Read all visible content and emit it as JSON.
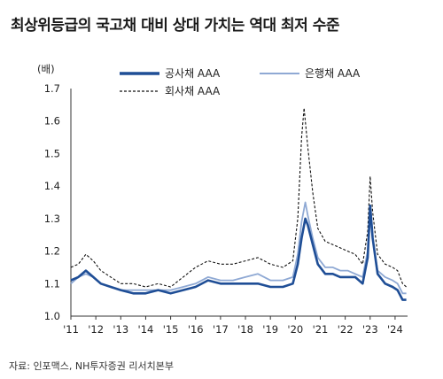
{
  "title": "최상위등급의 국고채 대비 상대 가치는 역대 최저 수준",
  "source": "자료: 인포맥스, NH투자증권 리서치본부",
  "chart_data": {
    "type": "line",
    "ylabel": "(배)",
    "ylim": [
      1.0,
      1.7
    ],
    "y_ticks": [
      "1.0",
      "1.1",
      "1.2",
      "1.3",
      "1.4",
      "1.5",
      "1.6",
      "1.7"
    ],
    "x_ticks": [
      "'11",
      "'12",
      "'13",
      "'14",
      "'15",
      "'16",
      "'17",
      "'18",
      "'19",
      "'20",
      "'21",
      "'22",
      "'23",
      "'24"
    ],
    "xlim": [
      2011.0,
      2024.5
    ],
    "grid": false,
    "legend_position": "top",
    "series": [
      {
        "name": "공사채 AAA",
        "color": "#1f4e96",
        "style": "solid-thick",
        "points": [
          [
            2011.0,
            1.11
          ],
          [
            2011.3,
            1.12
          ],
          [
            2011.6,
            1.14
          ],
          [
            2011.9,
            1.12
          ],
          [
            2012.2,
            1.1
          ],
          [
            2012.6,
            1.09
          ],
          [
            2013.0,
            1.08
          ],
          [
            2013.5,
            1.07
          ],
          [
            2014.0,
            1.07
          ],
          [
            2014.5,
            1.08
          ],
          [
            2015.0,
            1.07
          ],
          [
            2015.5,
            1.08
          ],
          [
            2016.0,
            1.09
          ],
          [
            2016.5,
            1.11
          ],
          [
            2017.0,
            1.1
          ],
          [
            2017.5,
            1.1
          ],
          [
            2018.0,
            1.1
          ],
          [
            2018.5,
            1.1
          ],
          [
            2019.0,
            1.09
          ],
          [
            2019.5,
            1.09
          ],
          [
            2019.9,
            1.1
          ],
          [
            2020.1,
            1.16
          ],
          [
            2020.25,
            1.24
          ],
          [
            2020.4,
            1.3
          ],
          [
            2020.5,
            1.28
          ],
          [
            2020.7,
            1.22
          ],
          [
            2020.9,
            1.16
          ],
          [
            2021.2,
            1.13
          ],
          [
            2021.5,
            1.13
          ],
          [
            2021.8,
            1.12
          ],
          [
            2022.1,
            1.12
          ],
          [
            2022.4,
            1.12
          ],
          [
            2022.7,
            1.1
          ],
          [
            2022.9,
            1.18
          ],
          [
            2023.0,
            1.34
          ],
          [
            2023.1,
            1.24
          ],
          [
            2023.3,
            1.13
          ],
          [
            2023.6,
            1.1
          ],
          [
            2023.9,
            1.09
          ],
          [
            2024.1,
            1.08
          ],
          [
            2024.3,
            1.05
          ],
          [
            2024.45,
            1.05
          ]
        ]
      },
      {
        "name": "은행채 AAA",
        "color": "#8fa9d4",
        "style": "solid",
        "points": [
          [
            2011.0,
            1.1
          ],
          [
            2011.3,
            1.12
          ],
          [
            2011.6,
            1.13
          ],
          [
            2011.9,
            1.12
          ],
          [
            2012.2,
            1.1
          ],
          [
            2012.6,
            1.09
          ],
          [
            2013.0,
            1.08
          ],
          [
            2013.5,
            1.08
          ],
          [
            2014.0,
            1.08
          ],
          [
            2014.5,
            1.08
          ],
          [
            2015.0,
            1.08
          ],
          [
            2015.5,
            1.09
          ],
          [
            2016.0,
            1.1
          ],
          [
            2016.5,
            1.12
          ],
          [
            2017.0,
            1.11
          ],
          [
            2017.5,
            1.11
          ],
          [
            2018.0,
            1.12
          ],
          [
            2018.5,
            1.13
          ],
          [
            2019.0,
            1.11
          ],
          [
            2019.5,
            1.11
          ],
          [
            2019.9,
            1.12
          ],
          [
            2020.1,
            1.19
          ],
          [
            2020.25,
            1.29
          ],
          [
            2020.4,
            1.35
          ],
          [
            2020.5,
            1.31
          ],
          [
            2020.7,
            1.24
          ],
          [
            2020.9,
            1.18
          ],
          [
            2021.2,
            1.15
          ],
          [
            2021.5,
            1.15
          ],
          [
            2021.8,
            1.14
          ],
          [
            2022.1,
            1.14
          ],
          [
            2022.4,
            1.13
          ],
          [
            2022.7,
            1.12
          ],
          [
            2022.9,
            1.2
          ],
          [
            2023.0,
            1.3
          ],
          [
            2023.1,
            1.24
          ],
          [
            2023.3,
            1.14
          ],
          [
            2023.6,
            1.12
          ],
          [
            2023.9,
            1.11
          ],
          [
            2024.1,
            1.1
          ],
          [
            2024.3,
            1.07
          ],
          [
            2024.45,
            1.07
          ]
        ]
      },
      {
        "name": "회사채 AAA",
        "color": "#111111",
        "style": "dashed",
        "points": [
          [
            2011.0,
            1.15
          ],
          [
            2011.3,
            1.16
          ],
          [
            2011.6,
            1.19
          ],
          [
            2011.9,
            1.17
          ],
          [
            2012.2,
            1.14
          ],
          [
            2012.6,
            1.12
          ],
          [
            2013.0,
            1.1
          ],
          [
            2013.5,
            1.1
          ],
          [
            2014.0,
            1.09
          ],
          [
            2014.5,
            1.1
          ],
          [
            2015.0,
            1.09
          ],
          [
            2015.5,
            1.12
          ],
          [
            2016.0,
            1.15
          ],
          [
            2016.5,
            1.17
          ],
          [
            2017.0,
            1.16
          ],
          [
            2017.5,
            1.16
          ],
          [
            2018.0,
            1.17
          ],
          [
            2018.5,
            1.18
          ],
          [
            2019.0,
            1.16
          ],
          [
            2019.5,
            1.15
          ],
          [
            2019.9,
            1.17
          ],
          [
            2020.1,
            1.3
          ],
          [
            2020.25,
            1.55
          ],
          [
            2020.35,
            1.64
          ],
          [
            2020.5,
            1.52
          ],
          [
            2020.7,
            1.38
          ],
          [
            2020.9,
            1.27
          ],
          [
            2021.2,
            1.23
          ],
          [
            2021.5,
            1.22
          ],
          [
            2021.8,
            1.21
          ],
          [
            2022.1,
            1.2
          ],
          [
            2022.4,
            1.19
          ],
          [
            2022.7,
            1.16
          ],
          [
            2022.9,
            1.26
          ],
          [
            2023.0,
            1.43
          ],
          [
            2023.1,
            1.32
          ],
          [
            2023.3,
            1.19
          ],
          [
            2023.6,
            1.16
          ],
          [
            2023.9,
            1.15
          ],
          [
            2024.1,
            1.14
          ],
          [
            2024.3,
            1.1
          ],
          [
            2024.45,
            1.09
          ]
        ]
      }
    ]
  }
}
